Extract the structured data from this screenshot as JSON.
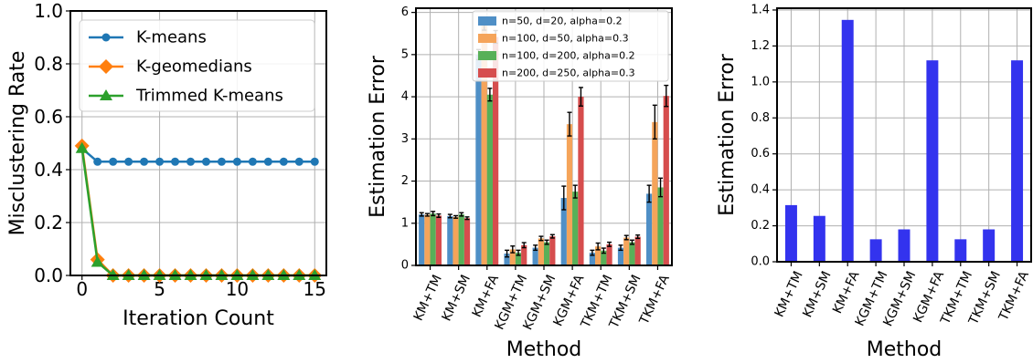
{
  "chart_data": [
    {
      "type": "line",
      "xlabel": "Iteration Count",
      "ylabel": "Misclustering Rate",
      "xlim": [
        -0.75,
        15.75
      ],
      "ylim": [
        0,
        1.0
      ],
      "xticks": [
        0,
        5,
        10,
        15
      ],
      "yticks": [
        0.0,
        0.2,
        0.4,
        0.6,
        0.8,
        1.0
      ],
      "ytick_labels": [
        "0.0",
        "0.2",
        "0.4",
        "0.6",
        "0.8",
        "1.0"
      ],
      "grid": true,
      "legend_position": "upper right",
      "x": [
        0,
        1,
        2,
        3,
        4,
        5,
        6,
        7,
        8,
        9,
        10,
        11,
        12,
        13,
        14,
        15
      ],
      "series": [
        {
          "name": "K-means",
          "color": "#1f77b4",
          "marker": "circle",
          "values": [
            0.48,
            0.43,
            0.43,
            0.43,
            0.43,
            0.43,
            0.43,
            0.43,
            0.43,
            0.43,
            0.43,
            0.43,
            0.43,
            0.43,
            0.43,
            0.43
          ]
        },
        {
          "name": "K-geomedians",
          "color": "#ff7f0e",
          "marker": "diamond",
          "values": [
            0.49,
            0.06,
            0.0,
            0.0,
            0.0,
            0.0,
            0.0,
            0.0,
            0.0,
            0.0,
            0.0,
            0.0,
            0.0,
            0.0,
            0.0,
            0.0
          ]
        },
        {
          "name": "Trimmed K-means",
          "color": "#2ca02c",
          "marker": "triangle",
          "values": [
            0.48,
            0.05,
            0.0,
            0.0,
            0.0,
            0.0,
            0.0,
            0.0,
            0.0,
            0.0,
            0.0,
            0.0,
            0.0,
            0.0,
            0.0,
            0.0
          ]
        }
      ]
    },
    {
      "type": "bar",
      "xlabel": "Method",
      "ylabel": "Estimation Error",
      "ylim": [
        0,
        6.1
      ],
      "yticks": [
        0,
        1,
        2,
        3,
        4,
        5,
        6
      ],
      "grid": true,
      "legend_position": "upper right",
      "categories": [
        "KM+TM",
        "KM+SM",
        "KM+FA",
        "KGM+TM",
        "KGM+SM",
        "KGM+FA",
        "TKM+TM",
        "TKM+SM",
        "TKM+FA"
      ],
      "series": [
        {
          "name": "n=50, d=20, alpha=0.2",
          "color": "#4f8fc6",
          "values": [
            1.21,
            1.17,
            5.0,
            0.28,
            0.42,
            1.6,
            0.3,
            0.42,
            1.7
          ],
          "errors": [
            0.04,
            0.04,
            0.12,
            0.08,
            0.06,
            0.28,
            0.06,
            0.06,
            0.2
          ]
        },
        {
          "name": "n=100, d=50, alpha=0.3",
          "color": "#f5a45a",
          "values": [
            1.2,
            1.15,
            5.7,
            0.38,
            0.64,
            3.35,
            0.45,
            0.66,
            3.4
          ],
          "errors": [
            0.03,
            0.03,
            0.12,
            0.08,
            0.05,
            0.28,
            0.08,
            0.05,
            0.4
          ]
        },
        {
          "name": "n=100, d=200, alpha=0.2",
          "color": "#58b058",
          "values": [
            1.23,
            1.21,
            4.05,
            0.3,
            0.55,
            1.75,
            0.35,
            0.55,
            1.85
          ],
          "errors": [
            0.05,
            0.04,
            0.15,
            0.06,
            0.05,
            0.15,
            0.06,
            0.05,
            0.22
          ]
        },
        {
          "name": "n=200, d=250, alpha=0.3",
          "color": "#d64d4d",
          "values": [
            1.18,
            1.12,
            5.42,
            0.48,
            0.69,
            4.0,
            0.5,
            0.68,
            4.02
          ],
          "errors": [
            0.04,
            0.03,
            0.15,
            0.06,
            0.04,
            0.22,
            0.05,
            0.04,
            0.25
          ]
        }
      ]
    },
    {
      "type": "bar",
      "xlabel": "Method",
      "ylabel": "Estimation Error",
      "ylim": [
        0,
        1.41
      ],
      "yticks": [
        0.0,
        0.2,
        0.4,
        0.6,
        0.8,
        1.0,
        1.2,
        1.4
      ],
      "ytick_labels": [
        "0.0",
        "0.2",
        "0.4",
        "0.6",
        "0.8",
        "1.0",
        "1.2",
        "1.4"
      ],
      "grid": true,
      "categories": [
        "KM+TM",
        "KM+SM",
        "KM+FA",
        "KGM+TM",
        "KGM+SM",
        "KGM+FA",
        "TKM+TM",
        "TKM+SM",
        "TKM+FA"
      ],
      "series": [
        {
          "color": "#3333ee",
          "values": [
            0.315,
            0.255,
            1.345,
            0.125,
            0.18,
            1.12,
            0.125,
            0.18,
            1.12
          ]
        }
      ]
    }
  ]
}
